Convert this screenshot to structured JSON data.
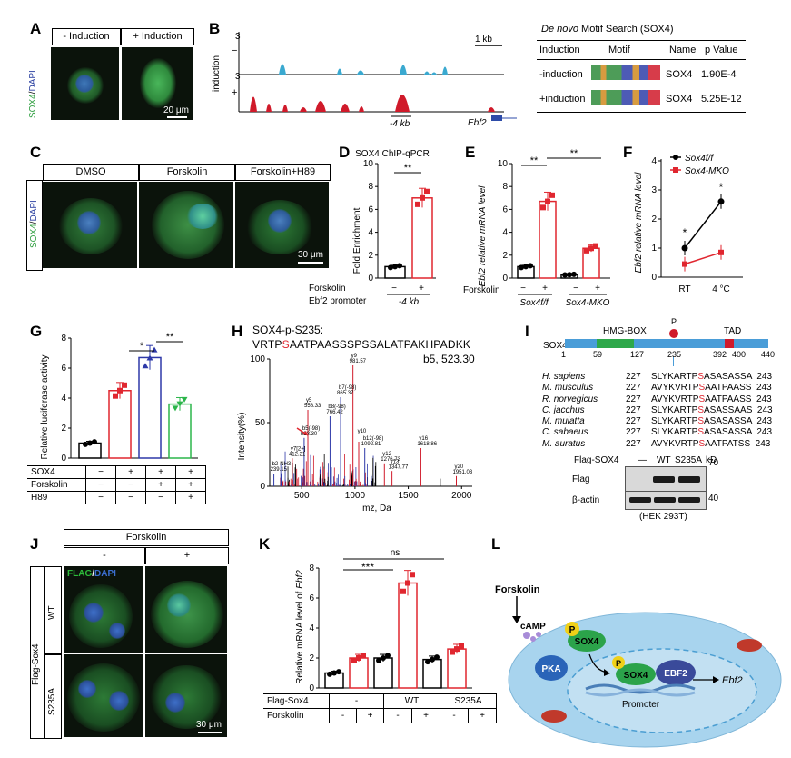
{
  "panels": {
    "A": "A",
    "B": "B",
    "C": "C",
    "D": "D",
    "E": "E",
    "F": "F",
    "G": "G",
    "H": "H",
    "I": "I",
    "J": "J",
    "K": "K",
    "L": "L"
  },
  "panelA": {
    "col1": "- Induction",
    "col2": "+ Induction",
    "stain_green": "SOX4",
    "stain_sep": "/",
    "stain_blue": "DAPI",
    "scale": "20 μm"
  },
  "panelB": {
    "track_minus": "−",
    "track_plus": "+",
    "yaxis": "induction",
    "scale_top": "3",
    "scale_top2": "3",
    "kb": "1 kb",
    "region": "-4 kb",
    "gene": "Ebf2"
  },
  "motif_table": {
    "title_italic": "De novo",
    "title_rest": " Motif Search (SOX4)",
    "headers": [
      "Induction",
      "Motif",
      "Name",
      "p Value"
    ],
    "rows": [
      {
        "induction": "-induction",
        "name": "SOX4",
        "p": "1.90E-4"
      },
      {
        "induction": "+induction",
        "name": "SOX4",
        "p": "5.25E-12"
      }
    ]
  },
  "panelC": {
    "cols": [
      "DMSO",
      "Forskolin",
      "Forskolin+H89"
    ],
    "stain_green": "SOX4",
    "stain_sep": "/",
    "stain_blue": "DAPI",
    "scale": "30 μm"
  },
  "panelD": {
    "title": "SOX4 ChIP-qPCR",
    "ylabel": "Fold Enrichment",
    "sig": "**",
    "row1": "Forskolin",
    "row2": "Ebf2 promoter",
    "minus": "−",
    "plus": "+",
    "region": "-4 kb"
  },
  "panelE": {
    "ylabel": "Ebf2 relative mRNA level",
    "sig1": "**",
    "sig2": "**",
    "row1": "Forskolin",
    "g1": "Sox4f/f",
    "g2": "Sox4-MKO",
    "minus": "−",
    "plus": "+"
  },
  "panelF": {
    "ylabel": "Ebf2 relative mRNA level",
    "legend": [
      "Sox4f/f",
      "Sox4-MKO"
    ],
    "sig": "*"
  },
  "panelG": {
    "ylabel": "Relative luciferase activity",
    "sig1": "*",
    "sig2": "**",
    "rows": [
      "SOX4",
      "Forskolin",
      "H89"
    ],
    "cells": [
      [
        "−",
        "+",
        "+",
        "+"
      ],
      [
        "−",
        "−",
        "+",
        "+"
      ],
      [
        "−",
        "−",
        "−",
        "+"
      ]
    ]
  },
  "panelH": {
    "title1": "SOX4-p-S235:",
    "seq_pre": "VRTP",
    "seq_s": "S",
    "seq_post": "AATPAASSSPSSALATPAKHPADKK",
    "b5": "b5, 523.30",
    "ylabel": "Intensity(%)",
    "xlabel": "mz, Da",
    "peak_labels": [
      {
        "t": "y9",
        "t2": "981.57"
      },
      {
        "t": "b7(-98)",
        "t2": "865.37"
      },
      {
        "t": "b8(-98)",
        "t2": "766.42"
      },
      {
        "t": "y5",
        "t2": "558.33"
      },
      {
        "t": "b5(-98)",
        "t2": "523.30"
      },
      {
        "t": "y10",
        "t2": ""
      },
      {
        "t": "b12(-98)",
        "t2": "1092.81"
      },
      {
        "t": "y12",
        "t2": "1276.73"
      },
      {
        "t": "y16",
        "t2": "1618.86"
      },
      {
        "t": "y13",
        "t2": "1347.77"
      },
      {
        "t": "y7[2+]",
        "t2": "412.21"
      },
      {
        "t": "b2-NH3",
        "t2": "239.15"
      },
      {
        "t": "y20",
        "t2": "1951.03"
      }
    ]
  },
  "panelI": {
    "sox4": "SOX4",
    "hmg": "HMG-BOX",
    "tad": "TAD",
    "p": "P",
    "pos": [
      "1",
      "59",
      "127",
      "235",
      "392",
      "400",
      "440"
    ],
    "species": [
      {
        "sp": "H. sapiens",
        "s": "227",
        "pre": "SLYKARTP",
        "mid": "S",
        "post": "ASASASSA",
        "e": "243"
      },
      {
        "sp": "M. musculus",
        "s": "227",
        "pre": "AVYKVRTP",
        "mid": "S",
        "post": "AATPAASS",
        "e": "243"
      },
      {
        "sp": "R. norvegicus",
        "s": "227",
        "pre": "AVYKVRTP",
        "mid": "S",
        "post": "AATPAASS",
        "e": "243"
      },
      {
        "sp": "C. jacchus",
        "s": "227",
        "pre": "SLYKARTP",
        "mid": "S",
        "post": "ASASSAAS",
        "e": "243"
      },
      {
        "sp": "M. mulatta",
        "s": "227",
        "pre": "SLYKARTP",
        "mid": "S",
        "post": "ASASASSA",
        "e": "243"
      },
      {
        "sp": "C. sabaeus",
        "s": "227",
        "pre": "SLYKARTP",
        "mid": "S",
        "post": "ASASASSA",
        "e": "243"
      },
      {
        "sp": "M. auratus",
        "s": "227",
        "pre": "AVYKVRTP",
        "mid": "S",
        "post": "AATPATSS",
        "e": "243"
      }
    ],
    "wb_header": "Flag-SOX4",
    "wb_dash": "—",
    "wb_wt": "WT",
    "wb_mut": "S235A",
    "wb_kd": "kD",
    "flag": "Flag",
    "actin": "β-actin",
    "m70": "70",
    "m40": "40",
    "cell": "(HEK 293T)"
  },
  "panelJ": {
    "forskolin": "Forskolin",
    "minus": "-",
    "plus": "+",
    "stain_green": "FLAG",
    "stain_sep": "/",
    "stain_blue": "DAPI",
    "flag_sox4": "Flag-Sox4",
    "wt": "WT",
    "mut": "S235A",
    "scale": "30 μm"
  },
  "panelK": {
    "ylabel_pre": "Relative mRNA level of ",
    "ylabel_gene": "Ebf2",
    "ns": "ns",
    "sig": "***",
    "row1": "Flag-Sox4",
    "row2": "Forskolin",
    "g": [
      "-",
      "WT",
      "S235A"
    ],
    "pm": [
      "-",
      "+",
      "-",
      "+",
      "-",
      "+"
    ]
  },
  "panelL": {
    "forskolin": "Forskolin",
    "camp": "cAMP",
    "p": "P",
    "pka": "PKA",
    "sox4": "SOX4",
    "ebf2": "EBF2",
    "promoter": "Promoter",
    "gene": "Ebf2"
  },
  "chart_data": [
    {
      "panel": "D",
      "type": "bar",
      "title": "SOX4 ChIP-qPCR",
      "xlabel": "",
      "ylabel": "Fold Enrichment",
      "ylim": [
        0,
        10
      ],
      "categories": [
        "−",
        "+"
      ],
      "values": [
        1.0,
        7.0
      ],
      "colors": [
        "#000000",
        "#e0262f"
      ],
      "points": [
        [
          0.8,
          1.2,
          1.0
        ],
        [
          6.2,
          7.0,
          7.6
        ]
      ],
      "ticks": [
        0,
        2,
        4,
        6,
        8,
        10
      ]
    },
    {
      "panel": "E",
      "type": "bar",
      "ylabel": "Ebf2 relative mRNA level",
      "ylim": [
        0,
        10
      ],
      "categories": [
        "Sox4f/f −",
        "Sox4f/f +",
        "Sox4-MKO −",
        "Sox4-MKO +"
      ],
      "values": [
        1.0,
        6.7,
        0.3,
        2.6
      ],
      "colors": [
        "#000000",
        "#e0262f",
        "#000000",
        "#e0262f"
      ],
      "ticks": [
        0,
        2,
        4,
        6,
        8,
        10
      ]
    },
    {
      "panel": "F",
      "type": "line",
      "ylabel": "Ebf2 relative mRNA level",
      "ylim": [
        0,
        4
      ],
      "categories": [
        "RT",
        "4 °C"
      ],
      "series": [
        {
          "name": "Sox4f/f",
          "values": [
            1.0,
            2.6
          ],
          "color": "#000000"
        },
        {
          "name": "Sox4-MKO",
          "values": [
            0.45,
            0.85
          ],
          "color": "#e0262f"
        }
      ],
      "ticks": [
        0,
        1,
        2,
        3,
        4
      ]
    },
    {
      "panel": "G",
      "type": "bar",
      "ylabel": "Relative luciferase activity",
      "ylim": [
        0,
        8
      ],
      "values": [
        1.0,
        4.5,
        6.7,
        3.6
      ],
      "colors": [
        "#000000",
        "#e0262f",
        "#2e39a8",
        "#2bb54a"
      ],
      "ticks": [
        0,
        2,
        4,
        6,
        8
      ]
    },
    {
      "panel": "H",
      "type": "bar",
      "xlabel": "mz, Da",
      "ylabel": "Intensity(%)",
      "ylim": [
        0,
        100
      ],
      "xlim": [
        200,
        2100
      ],
      "xticks": [
        500,
        1000,
        1500,
        2000
      ],
      "yticks": [
        0,
        50,
        100
      ]
    },
    {
      "panel": "K",
      "type": "bar",
      "ylabel": "Relative mRNA level of Ebf2",
      "ylim": [
        0,
        8
      ],
      "values": [
        1.0,
        2.0,
        2.0,
        7.0,
        1.9,
        2.6
      ],
      "colors": [
        "#000000",
        "#e0262f",
        "#000000",
        "#e0262f",
        "#000000",
        "#e0262f"
      ],
      "ticks": [
        0,
        2,
        4,
        6,
        8
      ]
    }
  ]
}
